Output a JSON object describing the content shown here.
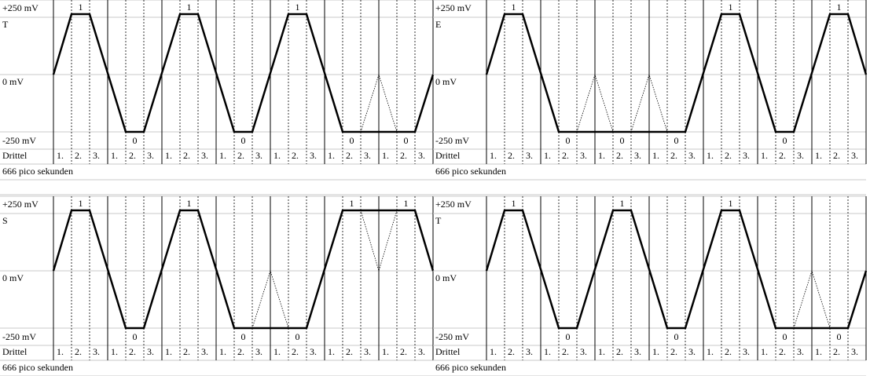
{
  "common": {
    "top": "+250 mV",
    "mid": "0 mV",
    "bottom": "-250 mV",
    "drittel": "Drittel",
    "thirds": [
      "1.",
      "2.",
      "3."
    ],
    "footer": "666 pico sekunden"
  },
  "panels": [
    {
      "letter": "T",
      "bits": [
        "1",
        "0",
        "1",
        "0",
        "1",
        "0",
        "0"
      ]
    },
    {
      "letter": "E",
      "bits": [
        "1",
        "0",
        "0",
        "0",
        "1",
        "0",
        "1"
      ]
    },
    {
      "letter": "S",
      "bits": [
        "1",
        "0",
        "1",
        "0",
        "0",
        "1",
        "1"
      ]
    },
    {
      "letter": "T",
      "bits": [
        "1",
        "0",
        "1",
        "0",
        "1",
        "0",
        "0"
      ]
    }
  ]
}
